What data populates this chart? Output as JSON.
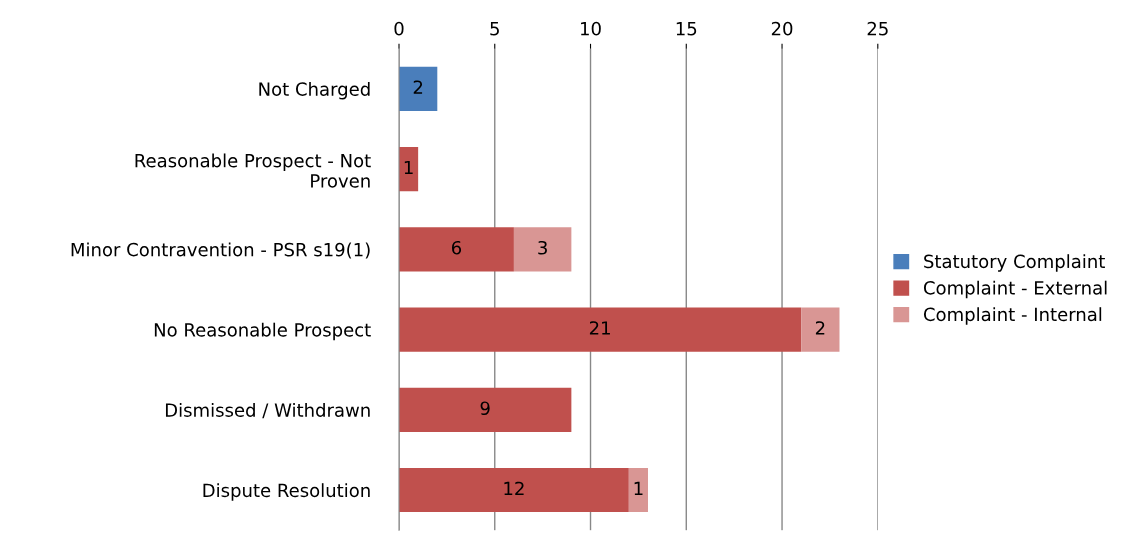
{
  "chart_data": {
    "type": "bar",
    "orientation": "horizontal",
    "stacked": true,
    "categories": [
      "Not Charged",
      "Reasonable Prospect - Not\nProven",
      "Minor Contravention - PSR s19(1)",
      "No Reasonable Prospect",
      "Dismissed / Withdrawn",
      "Dispute Resolution"
    ],
    "series": [
      {
        "name": "Statutory Complaint",
        "color": "#4a7ebb",
        "values": [
          2,
          null,
          null,
          null,
          null,
          null
        ]
      },
      {
        "name": "Complaint - External",
        "color": "#c0504d",
        "values": [
          null,
          1,
          6,
          21,
          9,
          12
        ]
      },
      {
        "name": "Complaint - Internal",
        "color": "#d99694",
        "values": [
          null,
          null,
          3,
          2,
          null,
          1
        ]
      }
    ],
    "xlim": [
      0,
      25
    ],
    "xticks": [
      0,
      5,
      10,
      15,
      20,
      25
    ],
    "grid": "x",
    "legend": "right",
    "data_labels": true
  }
}
